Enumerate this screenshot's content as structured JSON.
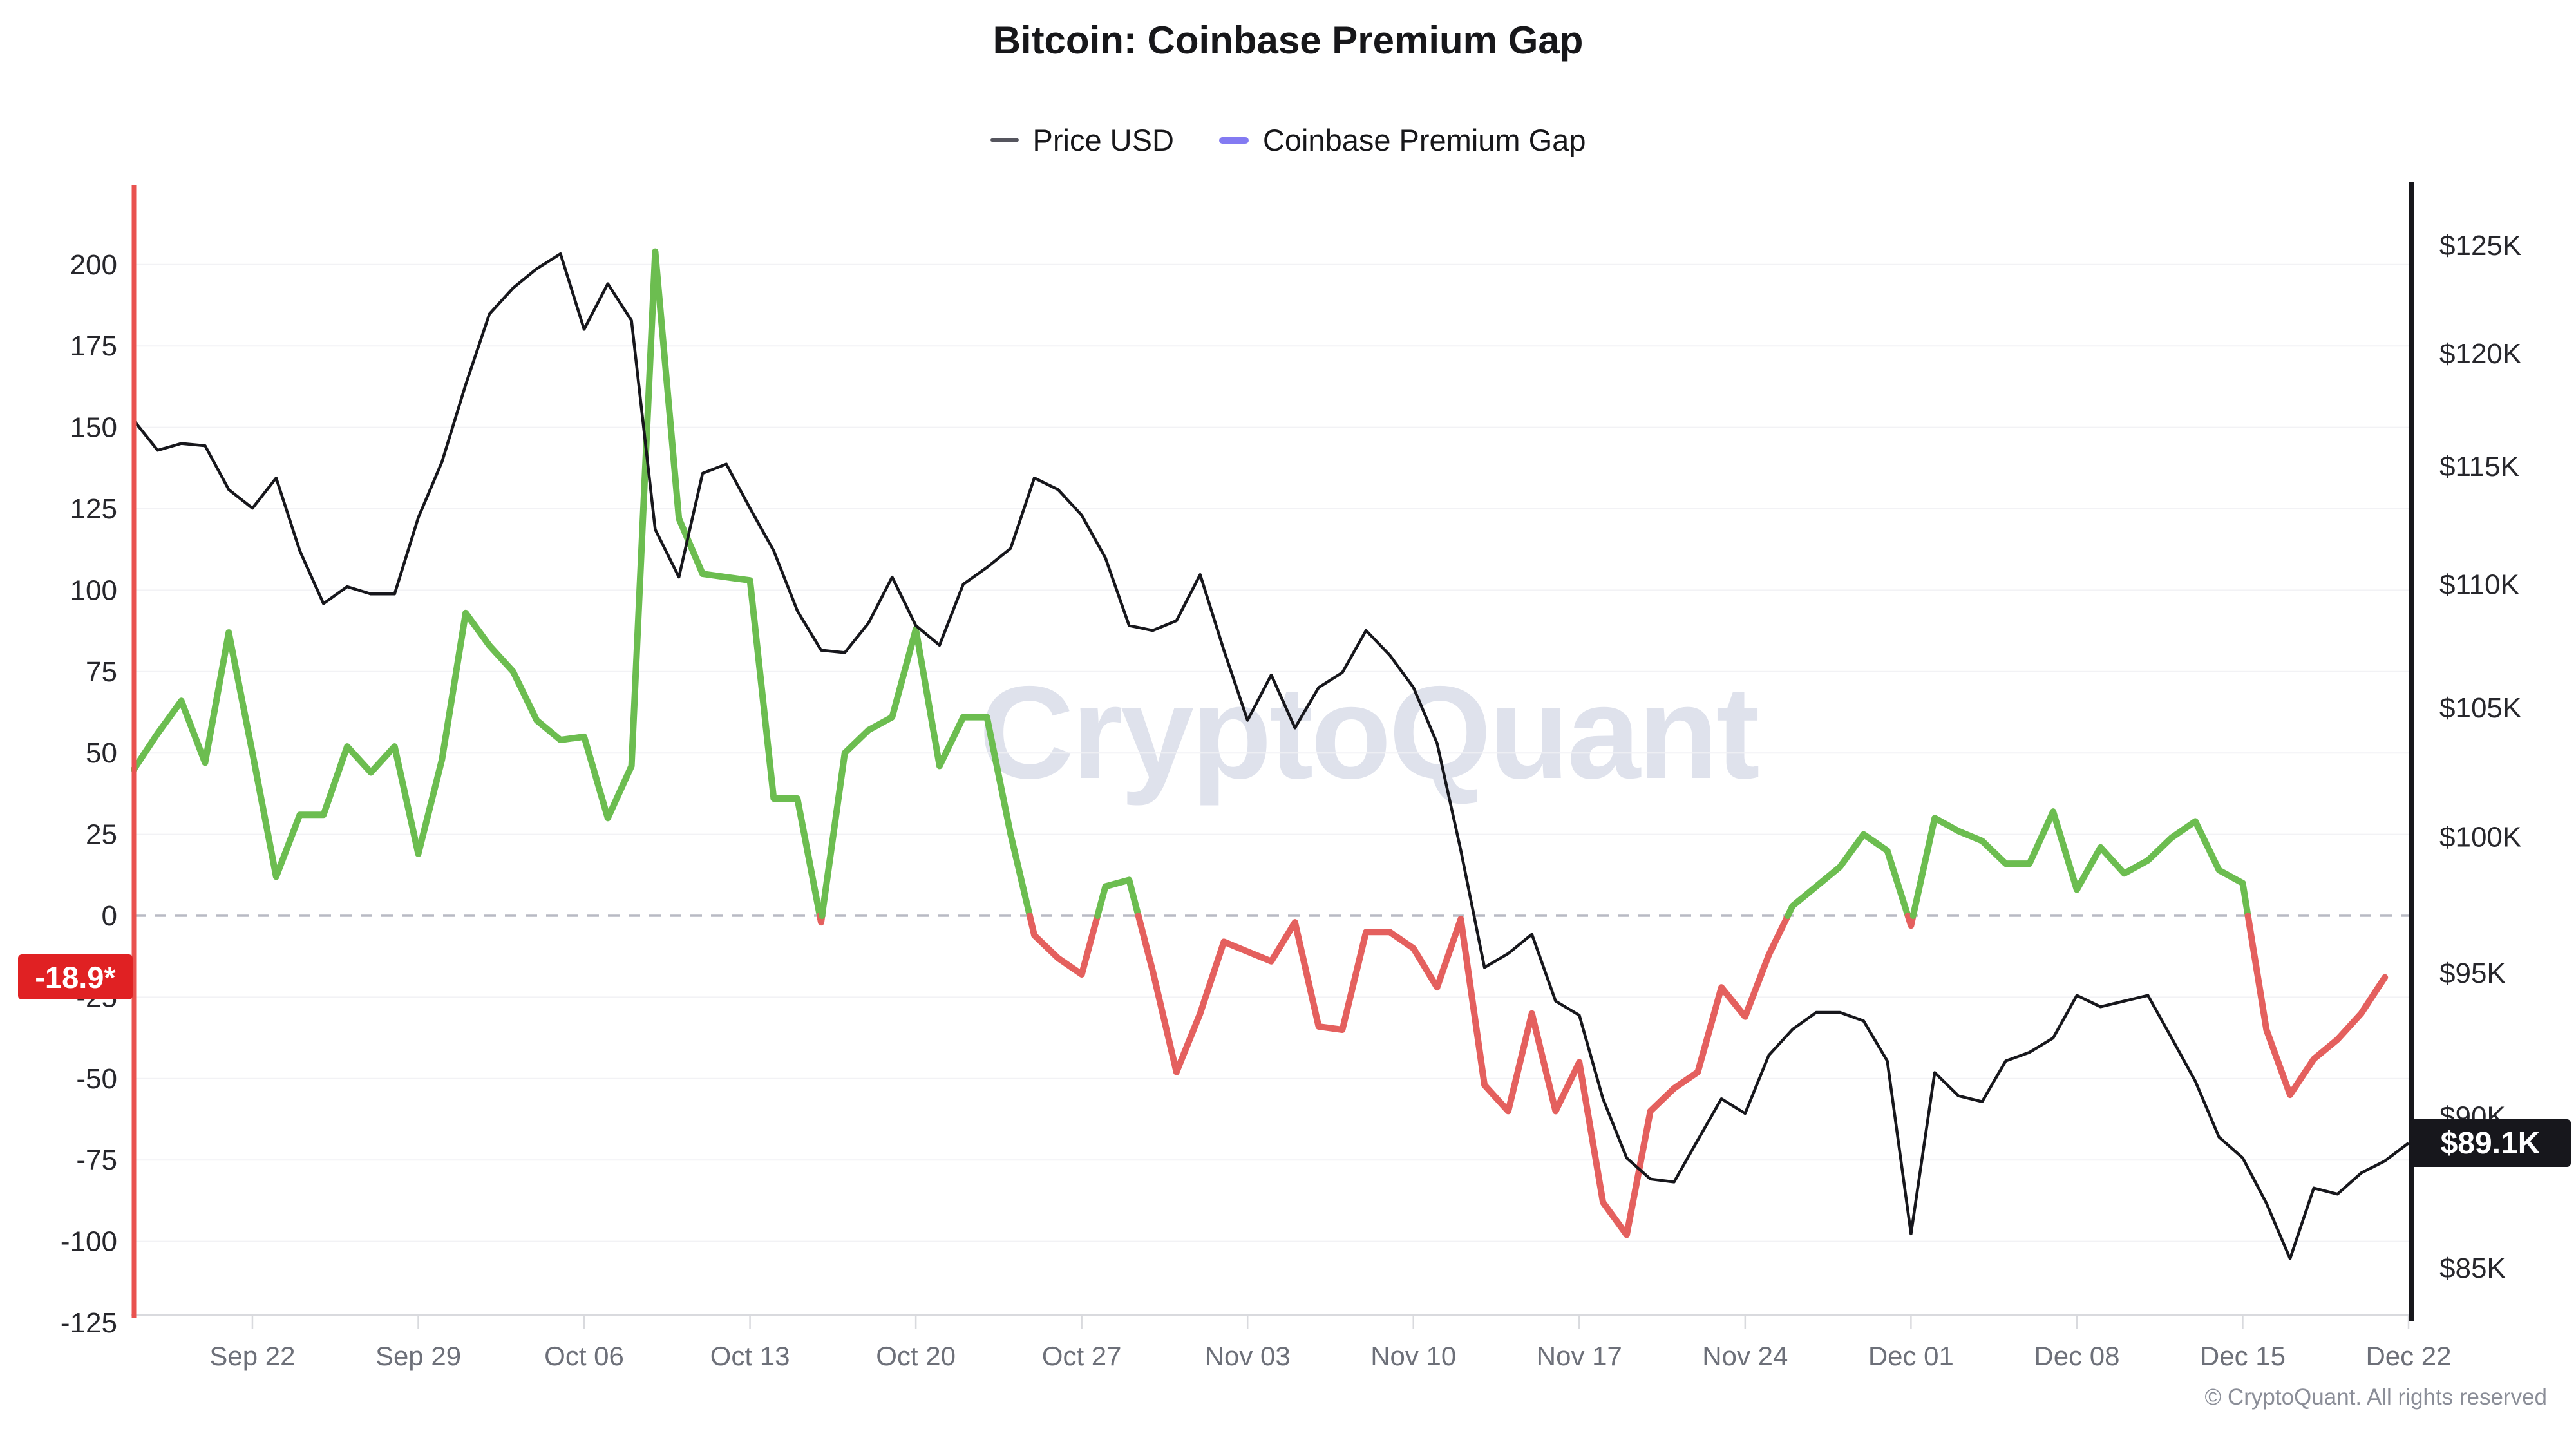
{
  "header": {
    "title": "Bitcoin: Coinbase Premium Gap"
  },
  "legend": {
    "items": [
      {
        "label": "Price USD",
        "color": "#55555e"
      },
      {
        "label": "Coinbase Premium Gap",
        "color": "#837af2"
      }
    ]
  },
  "watermark": "CryptoQuant",
  "copyright": "© CryptoQuant. All rights reserved",
  "badges": {
    "premium_last": {
      "label": "-18.9*",
      "value": -18.9,
      "color": "#e02123"
    },
    "price_last": {
      "label": "$89.1K",
      "value_thousands": 89.1,
      "color": "#17171c"
    }
  },
  "chart_data": {
    "type": "line",
    "title": "Bitcoin: Coinbase Premium Gap",
    "grid": true,
    "legend_position": "top",
    "x_dates": [
      "Sep 17",
      "Sep 18",
      "Sep 19",
      "Sep 20",
      "Sep 21",
      "Sep 22",
      "Sep 23",
      "Sep 24",
      "Sep 25",
      "Sep 26",
      "Sep 27",
      "Sep 28",
      "Sep 29",
      "Sep 30",
      "Oct 01",
      "Oct 02",
      "Oct 03",
      "Oct 04",
      "Oct 05",
      "Oct 06",
      "Oct 07",
      "Oct 08",
      "Oct 09",
      "Oct 10",
      "Oct 11",
      "Oct 12",
      "Oct 13",
      "Oct 14",
      "Oct 15",
      "Oct 16",
      "Oct 17",
      "Oct 18",
      "Oct 19",
      "Oct 20",
      "Oct 21",
      "Oct 22",
      "Oct 23",
      "Oct 24",
      "Oct 25",
      "Oct 26",
      "Oct 27",
      "Oct 28",
      "Oct 29",
      "Oct 30",
      "Oct 31",
      "Nov 01",
      "Nov 02",
      "Nov 03",
      "Nov 04",
      "Nov 05",
      "Nov 06",
      "Nov 07",
      "Nov 08",
      "Nov 09",
      "Nov 10",
      "Nov 11",
      "Nov 12",
      "Nov 13",
      "Nov 14",
      "Nov 15",
      "Nov 16",
      "Nov 17",
      "Nov 18",
      "Nov 19",
      "Nov 20",
      "Nov 21",
      "Nov 22",
      "Nov 23",
      "Nov 24",
      "Nov 25",
      "Nov 26",
      "Nov 27",
      "Nov 28",
      "Nov 29",
      "Nov 30",
      "Dec 01",
      "Dec 02",
      "Dec 03",
      "Dec 04",
      "Dec 05",
      "Dec 06",
      "Dec 07",
      "Dec 08",
      "Dec 09",
      "Dec 10",
      "Dec 11",
      "Dec 12",
      "Dec 13",
      "Dec 14",
      "Dec 15",
      "Dec 16",
      "Dec 17",
      "Dec 18",
      "Dec 19",
      "Dec 20",
      "Dec 21",
      "Dec 22"
    ],
    "series": [
      {
        "name": "Price USD",
        "axis": "right",
        "unit": "USD thousands",
        "color": "#17171c",
        "values": [
          117.0,
          115.7,
          116.0,
          115.9,
          114.0,
          113.2,
          114.5,
          111.4,
          109.2,
          109.9,
          109.6,
          109.6,
          112.8,
          115.2,
          118.6,
          121.8,
          123.0,
          123.9,
          124.6,
          121.1,
          123.2,
          121.5,
          112.3,
          110.3,
          114.7,
          115.1,
          113.2,
          111.4,
          108.9,
          107.3,
          107.2,
          108.4,
          110.3,
          108.3,
          107.5,
          110.0,
          110.7,
          111.5,
          114.5,
          114.0,
          112.9,
          111.1,
          108.3,
          108.1,
          108.5,
          110.4,
          107.3,
          104.5,
          106.3,
          104.2,
          105.8,
          106.4,
          108.1,
          107.1,
          105.8,
          103.6,
          99.5,
          95.2,
          95.7,
          96.4,
          94.0,
          93.5,
          90.6,
          88.6,
          87.9,
          87.8,
          89.2,
          90.6,
          90.1,
          92.1,
          93.0,
          93.6,
          93.6,
          93.3,
          91.9,
          86.1,
          91.5,
          90.7,
          90.5,
          91.9,
          92.2,
          92.7,
          94.2,
          93.8,
          94.0,
          94.2,
          92.7,
          91.2,
          89.3,
          88.6,
          87.1,
          85.3,
          87.6,
          87.4,
          88.1,
          88.5,
          89.1
        ]
      },
      {
        "name": "Coinbase Premium Gap",
        "axis": "left",
        "unit": "USD",
        "color_positive": "#6cbd50",
        "color_negative": "#e4605e",
        "values": [
          45,
          56,
          66,
          47,
          87,
          50,
          12,
          31,
          31,
          52,
          44,
          52,
          19,
          48,
          93,
          83,
          75,
          60,
          54,
          55,
          30,
          46,
          204,
          122,
          105,
          104,
          103,
          36,
          36,
          -2,
          50,
          57,
          61,
          88,
          46,
          61,
          61,
          25,
          -6,
          -13,
          -18,
          9,
          11,
          -17,
          -48,
          -30,
          -8,
          -11,
          -14,
          -2,
          -34,
          -35,
          -5,
          -5,
          -10,
          -22,
          -1,
          -52,
          -60,
          -30,
          -60,
          -45,
          -88,
          -98,
          -60,
          -53,
          -48,
          -22,
          -31,
          -12,
          3,
          9,
          15,
          25,
          20,
          -3,
          30,
          26,
          23,
          16,
          16,
          32,
          8,
          21,
          13,
          17,
          24,
          29,
          14,
          10,
          -35,
          -55,
          -44,
          -38,
          -30,
          -18.9
        ]
      }
    ],
    "y_axis_left": {
      "range": [
        -125,
        200
      ],
      "zero_line": "dashed",
      "ticks": [
        {
          "value": 200,
          "label": "200"
        },
        {
          "value": 175,
          "label": "175"
        },
        {
          "value": 150,
          "label": "150"
        },
        {
          "value": 125,
          "label": "125"
        },
        {
          "value": 100,
          "label": "100"
        },
        {
          "value": 75,
          "label": "75"
        },
        {
          "value": 50,
          "label": "50"
        },
        {
          "value": 25,
          "label": "25"
        },
        {
          "value": 0,
          "label": "0"
        },
        {
          "value": -25,
          "label": "-25"
        },
        {
          "value": -50,
          "label": "-50"
        },
        {
          "value": -75,
          "label": "-75"
        },
        {
          "value": -100,
          "label": "-100"
        },
        {
          "value": -125,
          "label": "-125"
        }
      ]
    },
    "y_axis_right": {
      "scale": "log",
      "range_thousands": [
        83.5,
        128.5
      ],
      "ticks": [
        {
          "value": 125,
          "label": "$125K"
        },
        {
          "value": 120,
          "label": "$120K"
        },
        {
          "value": 115,
          "label": "$115K"
        },
        {
          "value": 110,
          "label": "$110K"
        },
        {
          "value": 105,
          "label": "$105K"
        },
        {
          "value": 100,
          "label": "$100K"
        },
        {
          "value": 95,
          "label": "$95K"
        },
        {
          "value": 90,
          "label": "$90K"
        },
        {
          "value": 85,
          "label": "$85K"
        }
      ]
    },
    "x_axis": {
      "ticks": [
        {
          "index": 5,
          "label": "Sep 22"
        },
        {
          "index": 12,
          "label": "Sep 29"
        },
        {
          "index": 19,
          "label": "Oct 06"
        },
        {
          "index": 26,
          "label": "Oct 13"
        },
        {
          "index": 33,
          "label": "Oct 20"
        },
        {
          "index": 40,
          "label": "Oct 27"
        },
        {
          "index": 47,
          "label": "Nov 03"
        },
        {
          "index": 54,
          "label": "Nov 10"
        },
        {
          "index": 61,
          "label": "Nov 17"
        },
        {
          "index": 68,
          "label": "Nov 24"
        },
        {
          "index": 75,
          "label": "Dec 01"
        },
        {
          "index": 82,
          "label": "Dec 08"
        },
        {
          "index": 89,
          "label": "Dec 15"
        },
        {
          "index": 96,
          "label": "Dec 22"
        }
      ]
    },
    "style": {
      "left_axis_line_color": "#e9524f",
      "right_axis_line_color": "#17171c",
      "gridline_color": "#f2f2f5",
      "zero_dash_color": "#b8bac4",
      "baseline_color": "#d9dade",
      "x_label_color": "#6d7079",
      "y_label_color": "#27272c"
    }
  }
}
